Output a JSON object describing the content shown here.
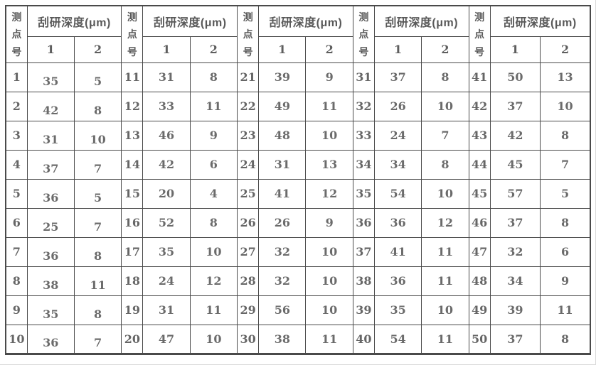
{
  "table": {
    "header": {
      "point_label": "测点号",
      "depth_label": "刮研深度(μm)",
      "sub_columns": [
        "1",
        "2"
      ]
    },
    "groups": [
      {
        "rows": [
          [
            "1",
            "35",
            "5"
          ],
          [
            "2",
            "42",
            "8"
          ],
          [
            "3",
            "31",
            "10"
          ],
          [
            "4",
            "37",
            "7"
          ],
          [
            "5",
            "36",
            "5"
          ],
          [
            "6",
            "25",
            "7"
          ],
          [
            "7",
            "36",
            "8"
          ],
          [
            "8",
            "38",
            "11"
          ],
          [
            "9",
            "35",
            "8"
          ],
          [
            "10",
            "36",
            "7"
          ]
        ]
      },
      {
        "rows": [
          [
            "11",
            "31",
            "8"
          ],
          [
            "12",
            "33",
            "11"
          ],
          [
            "13",
            "46",
            "9"
          ],
          [
            "14",
            "42",
            "6"
          ],
          [
            "15",
            "20",
            "4"
          ],
          [
            "16",
            "52",
            "8"
          ],
          [
            "17",
            "35",
            "10"
          ],
          [
            "18",
            "24",
            "12"
          ],
          [
            "19",
            "31",
            "11"
          ],
          [
            "20",
            "47",
            "10"
          ]
        ]
      },
      {
        "rows": [
          [
            "21",
            "39",
            "9"
          ],
          [
            "22",
            "49",
            "11"
          ],
          [
            "23",
            "48",
            "10"
          ],
          [
            "24",
            "31",
            "13"
          ],
          [
            "25",
            "41",
            "12"
          ],
          [
            "26",
            "26",
            "9"
          ],
          [
            "27",
            "32",
            "10"
          ],
          [
            "28",
            "32",
            "10"
          ],
          [
            "29",
            "56",
            "10"
          ],
          [
            "30",
            "38",
            "11"
          ]
        ]
      },
      {
        "rows": [
          [
            "31",
            "37",
            "8"
          ],
          [
            "32",
            "26",
            "10"
          ],
          [
            "33",
            "24",
            "7"
          ],
          [
            "34",
            "34",
            "8"
          ],
          [
            "35",
            "54",
            "10"
          ],
          [
            "36",
            "36",
            "12"
          ],
          [
            "37",
            "41",
            "11"
          ],
          [
            "38",
            "36",
            "11"
          ],
          [
            "39",
            "35",
            "10"
          ],
          [
            "40",
            "54",
            "11"
          ]
        ]
      },
      {
        "rows": [
          [
            "41",
            "50",
            "13"
          ],
          [
            "42",
            "37",
            "10"
          ],
          [
            "43",
            "42",
            "8"
          ],
          [
            "44",
            "45",
            "7"
          ],
          [
            "45",
            "57",
            "5"
          ],
          [
            "46",
            "37",
            "8"
          ],
          [
            "47",
            "32",
            "6"
          ],
          [
            "48",
            "34",
            "9"
          ],
          [
            "49",
            "39",
            "11"
          ],
          [
            "50",
            "37",
            "8"
          ]
        ]
      }
    ]
  },
  "colors": {
    "border": "#4a4a4a",
    "value_text": "#666666",
    "header_text": "#595959",
    "background": "#ffffff"
  }
}
